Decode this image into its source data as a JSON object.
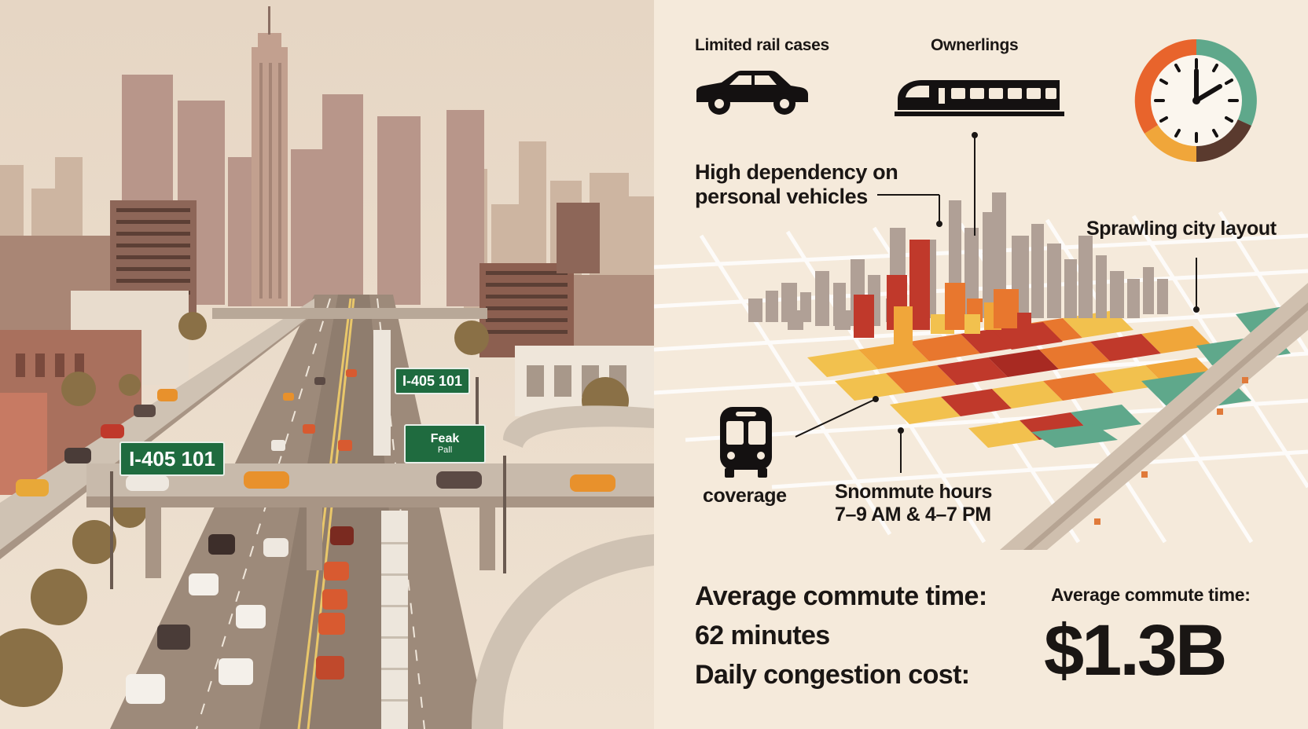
{
  "signs": {
    "main": "I-405 101",
    "secondary": "I-405 101",
    "peak_line1": "Feak",
    "peak_line2": "Pall"
  },
  "labels": {
    "limited_rail": "Limited rail cases",
    "ownerlings": "Ownerlings",
    "dependency_line1": "High dependency on",
    "dependency_line2": "personal vehicles",
    "sprawl": "Sprawling city layout",
    "coverage": "coverage",
    "commute_hours_line1": "Snommute hours",
    "commute_hours_line2": "7–9 AM & 4–7 PM"
  },
  "stats": {
    "avg_label": "Average commute time:",
    "avg_value": "62 minutes",
    "daily_label": "Daily congestion cost:",
    "right_label": "Average commute time:",
    "big_value": "$1.3B"
  },
  "icons": [
    "car-icon",
    "train-icon",
    "clock-icon",
    "bus-icon"
  ],
  "colors": {
    "background": "#f5eadb",
    "sign_green": "#1f6b3f",
    "heat_red": "#c0392b",
    "heat_orange": "#e8772e",
    "heat_yellow": "#f2c14e",
    "green_zone": "#5fa88b",
    "clock_orange": "#e8642c",
    "clock_teal": "#5fa88b",
    "clock_brown": "#5a3a2e"
  }
}
